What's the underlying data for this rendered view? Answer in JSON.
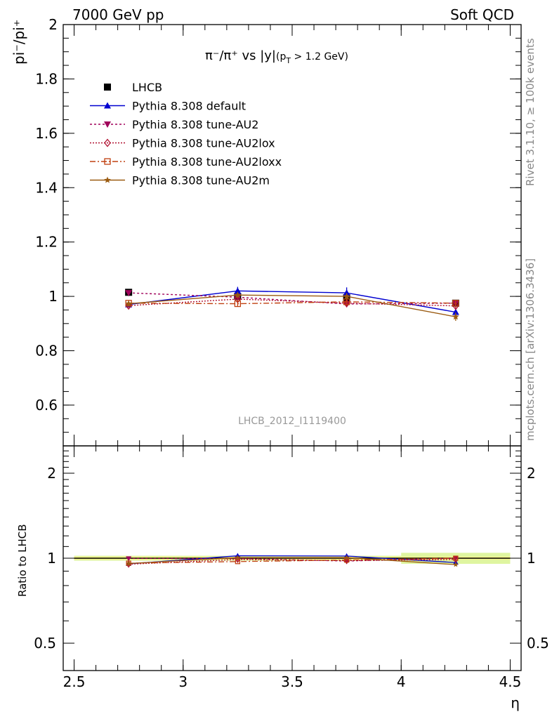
{
  "header": {
    "left": "7000 GeV pp",
    "right": "Soft QCD"
  },
  "side": {
    "rivet": "Rivet 3.1.10, ≥ 100k events",
    "mcplots": "mcplots.cern.ch [arXiv:1306.3436]"
  },
  "chart_data": [
    {
      "type": "line",
      "title_main": "π⁻/π⁺ vs |y|",
      "title_sub": "(p",
      "title_sub_idx": "T",
      "title_sub_tail": " > 1.2 GeV)",
      "ylabel": "pi⁻/pi⁺",
      "ylim": [
        0.45,
        2.0
      ],
      "yticks": [
        "0.6",
        "0.8",
        "1",
        "1.2",
        "1.4",
        "1.6",
        "1.8",
        "2"
      ],
      "ytick_values": [
        0.6,
        0.8,
        1.0,
        1.2,
        1.4,
        1.6,
        1.8,
        2.0
      ],
      "watermark": "LHCB_2012_I1119400",
      "x": [
        2.75,
        3.25,
        3.75,
        4.25
      ],
      "series": [
        {
          "name": "LHCB",
          "color": "#000000",
          "marker": "square-filled",
          "dash": "none",
          "line": false,
          "values": [
            1.015,
            1.0,
            0.995,
            0.975
          ],
          "errors": [
            0.012,
            0.012,
            0.012,
            0.012
          ]
        },
        {
          "name": "Pythia 8.308 default",
          "color": "#0000d0",
          "marker": "triangle-up",
          "dash": "none",
          "line": true,
          "values": [
            0.97,
            1.02,
            1.013,
            0.942
          ],
          "errors": [
            0.008,
            0.015,
            0.02,
            0.01
          ]
        },
        {
          "name": "Pythia 8.308 tune-AU2",
          "color": "#a0005a",
          "marker": "triangle-down",
          "dash": "3,3",
          "line": true,
          "values": [
            1.013,
            0.997,
            0.972,
            0.975
          ],
          "errors": [
            0.008,
            0.01,
            0.012,
            0.01
          ]
        },
        {
          "name": "Pythia 8.308 tune-AU2lox",
          "color": "#b01030",
          "marker": "diamond-open",
          "dash": "2,2",
          "line": true,
          "values": [
            0.966,
            0.99,
            0.975,
            0.965
          ],
          "errors": [
            0.008,
            0.01,
            0.012,
            0.01
          ]
        },
        {
          "name": "Pythia 8.308 tune-AU2loxx",
          "color": "#c04010",
          "marker": "square-open",
          "dash": "8,3,2,3",
          "line": true,
          "values": [
            0.975,
            0.973,
            0.98,
            0.975
          ],
          "errors": [
            0.008,
            0.01,
            0.012,
            0.01
          ]
        },
        {
          "name": "Pythia 8.308 tune-AU2m",
          "color": "#9a5a10",
          "marker": "star",
          "dash": "none",
          "line": true,
          "values": [
            0.973,
            1.005,
            1.0,
            0.925
          ],
          "errors": [
            0.008,
            0.01,
            0.012,
            0.015
          ]
        }
      ]
    },
    {
      "type": "line",
      "ylabel": "Ratio to LHCB",
      "xlabel": "η",
      "xlim": [
        2.45,
        4.55
      ],
      "xticks": [
        "2.5",
        "3",
        "3.5",
        "4",
        "4.5"
      ],
      "xtick_values": [
        2.5,
        3.0,
        3.5,
        4.0,
        4.5
      ],
      "yscale": "log",
      "ylim": [
        0.4,
        2.5
      ],
      "yticks": [
        "0.5",
        "1",
        "2"
      ],
      "ytick_values": [
        0.5,
        1.0,
        2.0
      ],
      "x": [
        2.75,
        3.25,
        3.75,
        4.25
      ],
      "band": {
        "inner": [
          0.012,
          0.012,
          0.012,
          0.012
        ],
        "outer": [
          0.02,
          0.02,
          0.02,
          0.045
        ]
      },
      "series": [
        {
          "name": "Pythia 8.308 default",
          "values": [
            0.955,
            1.02,
            1.018,
            0.965
          ]
        },
        {
          "name": "Pythia 8.308 tune-AU2",
          "values": [
            0.998,
            0.997,
            0.977,
            1.0
          ]
        },
        {
          "name": "Pythia 8.308 tune-AU2lox",
          "values": [
            0.952,
            0.99,
            0.98,
            0.99
          ]
        },
        {
          "name": "Pythia 8.308 tune-AU2loxx",
          "values": [
            0.96,
            0.973,
            0.985,
            1.0
          ]
        },
        {
          "name": "Pythia 8.308 tune-AU2m",
          "values": [
            0.958,
            1.005,
            1.005,
            0.949
          ]
        }
      ]
    }
  ]
}
